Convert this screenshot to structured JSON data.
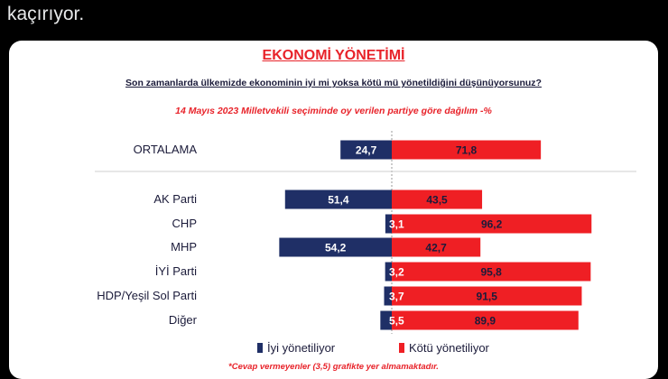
{
  "tweet": {
    "text": "kaçırıyor."
  },
  "colors": {
    "good": "#1f2f66",
    "bad": "#ef1f24"
  },
  "chart_data": {
    "type": "bar",
    "title": "EKONOMİ YÖNETİMİ",
    "subtitle": "Son zamanlarda ülkemizde ekonominin iyi mi yoksa kötü mü yönetildiğini düşünüyorsunuz?",
    "note": "14 Mayıs 2023 Milletvekili seçiminde oy verilen partiye göre dağılım -%",
    "categories": [
      "ORTALAMA",
      "AK Parti",
      "CHP",
      "MHP",
      "İYİ Parti",
      "HDP/Yeşil Sol Parti",
      "Diğer"
    ],
    "series": [
      {
        "name": "İyi yönetiliyor",
        "values": [
          24.7,
          51.4,
          3.1,
          54.2,
          3.2,
          3.7,
          5.5
        ],
        "labels": [
          "24,7",
          "51,4",
          "3,1",
          "54,2",
          "3,2",
          "3,7",
          "5,5"
        ]
      },
      {
        "name": "Kötü yönetiliyor",
        "values": [
          71.8,
          43.5,
          96.2,
          42.7,
          95.8,
          91.5,
          89.9
        ],
        "labels": [
          "71,8",
          "43,5",
          "96,2",
          "42,7",
          "95,8",
          "91,5",
          "89,9"
        ]
      }
    ],
    "footnote": "*Cevap vermeyenler (3,5) grafikte yer almamaktadır."
  }
}
